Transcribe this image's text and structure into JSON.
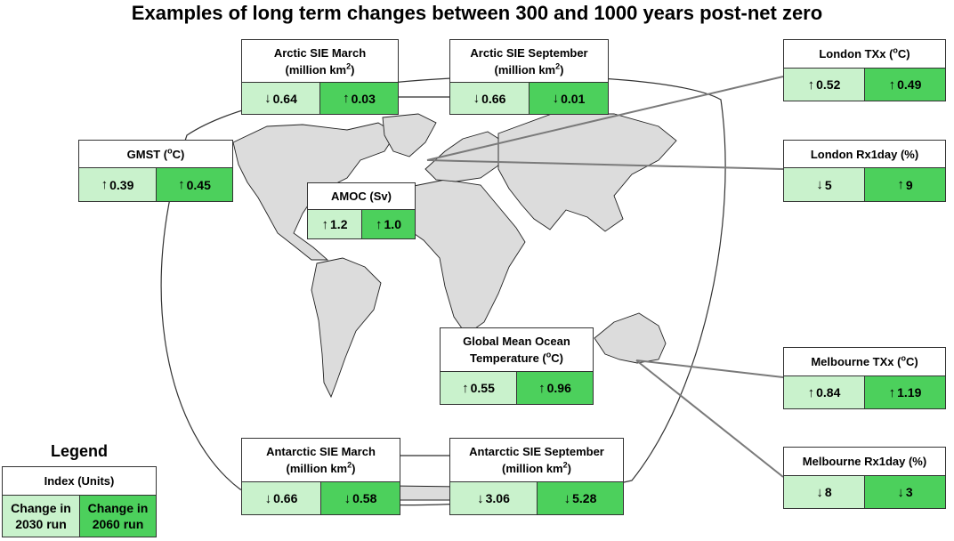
{
  "title": "Examples of long term changes between 300 and 1000 years post-net zero",
  "colors": {
    "run_2030": "#c9f2cc",
    "run_2060": "#4cd05c",
    "land": "#dcdcdc"
  },
  "boxes": {
    "arctic_march": {
      "label": "Arctic SIE March",
      "units": "(million km",
      "units_sup": "2",
      "units_end": ")",
      "v2030": "0.64",
      "d2030": "down",
      "v2060": "0.03",
      "d2060": "up"
    },
    "arctic_sept": {
      "label": "Arctic SIE September",
      "units": "(million km",
      "units_sup": "2",
      "units_end": ")",
      "v2030": "0.66",
      "d2030": "down",
      "v2060": "0.01",
      "d2060": "down"
    },
    "london_txx": {
      "label": "London TXx (",
      "label_sup": "o",
      "label_end": "C)",
      "v2030": "0.52",
      "d2030": "up",
      "v2060": "0.49",
      "d2060": "up"
    },
    "gmst": {
      "label": "GMST (",
      "label_sup": "o",
      "label_end": "C)",
      "v2030": "0.39",
      "d2030": "up",
      "v2060": "0.45",
      "d2060": "up"
    },
    "london_rx1day": {
      "label": "London Rx1day (%)",
      "v2030": "5",
      "d2030": "down",
      "v2060": "9",
      "d2060": "up"
    },
    "amoc": {
      "label": "AMOC (Sv)",
      "v2030": "1.2",
      "d2030": "up",
      "v2060": "1.0",
      "d2060": "up"
    },
    "gmot": {
      "label": "Global Mean Ocean",
      "label2": "Temperature (",
      "label_sup": "o",
      "label_end": "C)",
      "v2030": "0.55",
      "d2030": "up",
      "v2060": "0.96",
      "d2060": "up"
    },
    "melbourne_txx": {
      "label": "Melbourne TXx (",
      "label_sup": "o",
      "label_end": "C)",
      "v2030": "0.84",
      "d2030": "up",
      "v2060": "1.19",
      "d2060": "up"
    },
    "antarctic_march": {
      "label": "Antarctic SIE March",
      "units": "(million km",
      "units_sup": "2",
      "units_end": ")",
      "v2030": "0.66",
      "d2030": "down",
      "v2060": "0.58",
      "d2060": "down"
    },
    "antarctic_sept": {
      "label": "Antarctic SIE September",
      "units": "(million km",
      "units_sup": "2",
      "units_end": ")",
      "v2030": "3.06",
      "d2030": "down",
      "v2060": "5.28",
      "d2060": "down"
    },
    "melbourne_rx1day": {
      "label": "Melbourne Rx1day (%)",
      "v2030": "8",
      "d2030": "down",
      "v2060": "3",
      "d2060": "down"
    }
  },
  "legend": {
    "title": "Legend",
    "index": "Index (Units)",
    "cell1_line1": "Change in",
    "cell1_line2": "2030 run",
    "cell2_line1": "Change in",
    "cell2_line2": "2060 run"
  }
}
